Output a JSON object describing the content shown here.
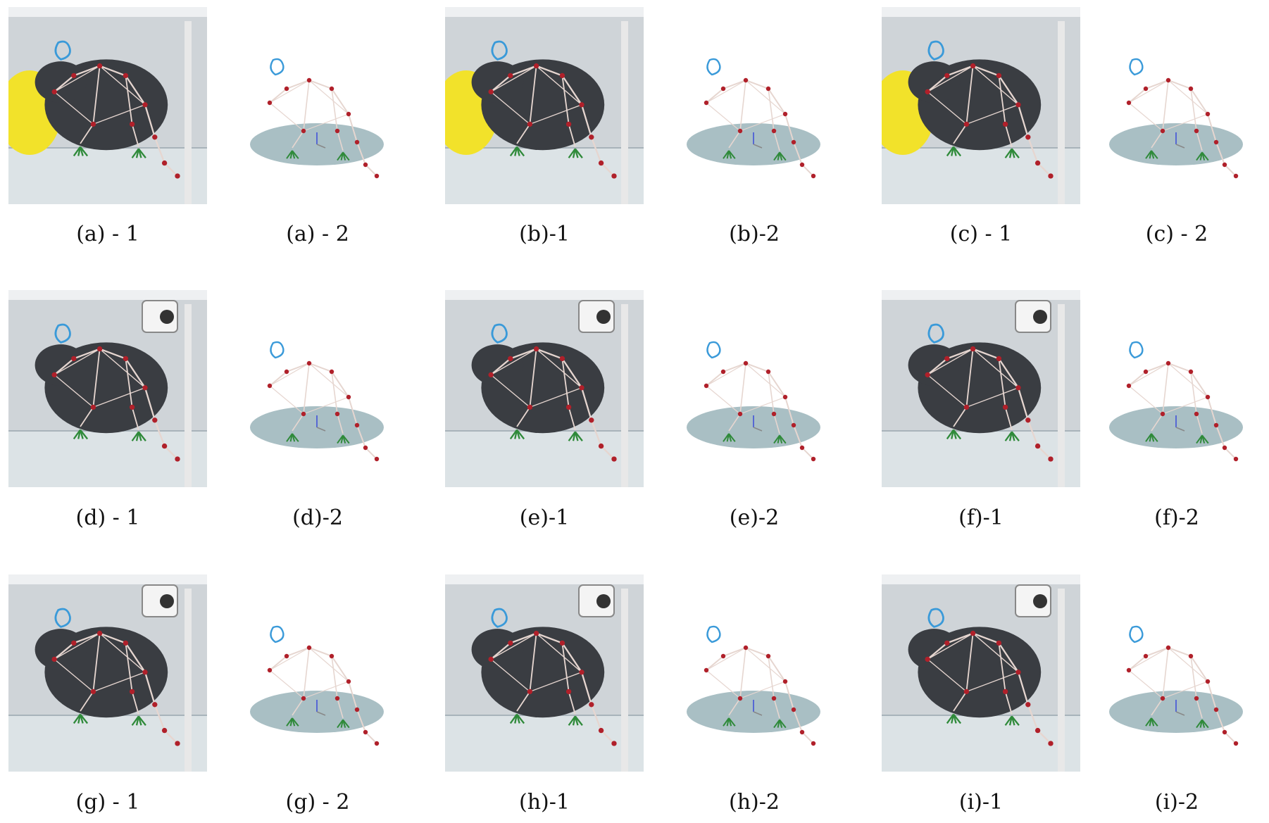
{
  "figure": {
    "panels": [
      {
        "id": "a",
        "photo_caption": "(a) - 1",
        "skeleton_caption": "(a) - 2",
        "accent": "#f2e22a"
      },
      {
        "id": "b",
        "photo_caption": "(b)-1",
        "skeleton_caption": "(b)-2",
        "accent": "#f2e22a"
      },
      {
        "id": "c",
        "photo_caption": "(c) - 1",
        "skeleton_caption": "(c) - 2",
        "accent": "#f2e22a"
      },
      {
        "id": "d",
        "photo_caption": "(d) - 1",
        "skeleton_caption": "(d)-2",
        "accent": "#d9d9d9"
      },
      {
        "id": "e",
        "photo_caption": "(e)-1",
        "skeleton_caption": "(e)-2",
        "accent": "#d9d9d9"
      },
      {
        "id": "f",
        "photo_caption": "(f)-1",
        "skeleton_caption": "(f)-2",
        "accent": "#d9d9d9"
      },
      {
        "id": "g",
        "photo_caption": "(g) - 1",
        "skeleton_caption": "(g) - 2",
        "accent": "#d9d9d9"
      },
      {
        "id": "h",
        "photo_caption": "(h)-1",
        "skeleton_caption": "(h)-2",
        "accent": "#d9d9d9"
      },
      {
        "id": "i",
        "photo_caption": "(i)-1",
        "skeleton_caption": "(i)-2",
        "accent": "#d9d9d9"
      }
    ]
  },
  "colors": {
    "mouse_body": "#3a3d42",
    "skeleton_bone": "#e6d6d0",
    "joint": "#b0202a",
    "limb_green": "#2f8a3a",
    "head_blue": "#3a9ad9",
    "ground_disc": "#a9bfc4",
    "arena_bg": "#cfd4d8"
  },
  "icons": {
    "photo": "mouse-photo-icon",
    "skeleton": "3d-skeleton-icon"
  }
}
